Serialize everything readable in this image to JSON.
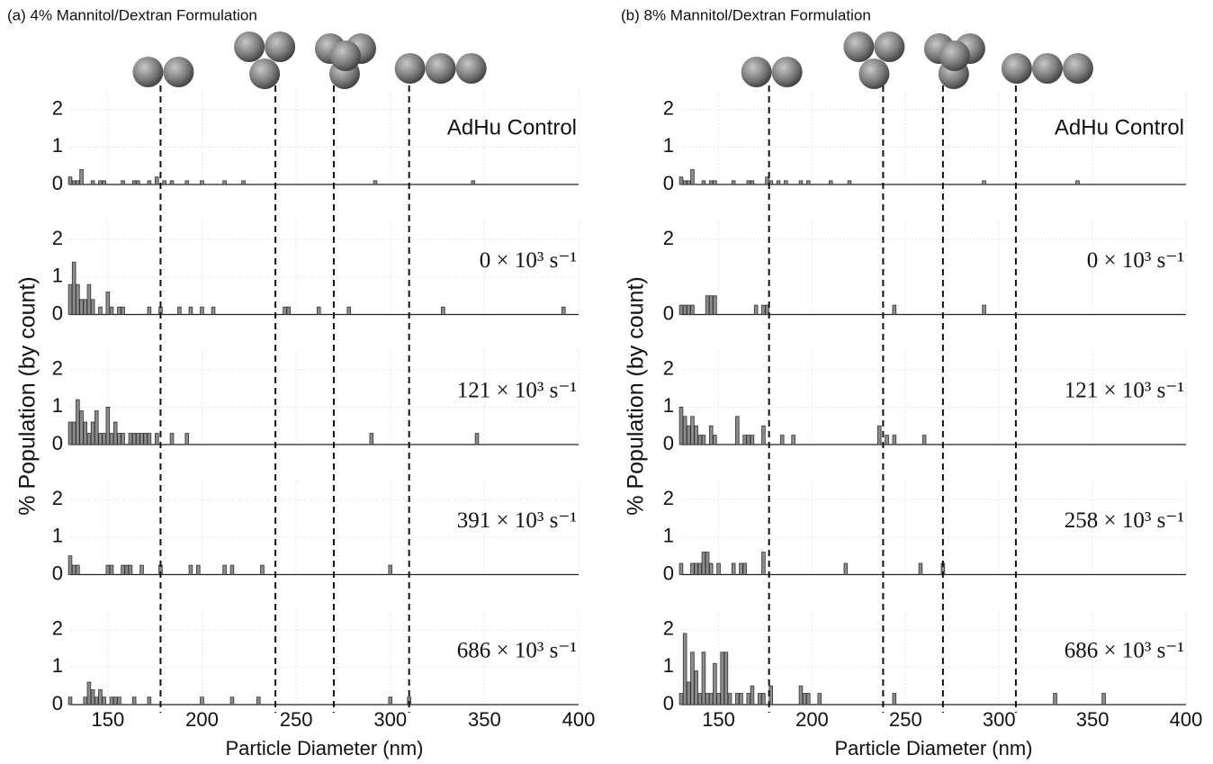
{
  "chart_data": [
    {
      "type": "bar",
      "title": "(a) 4% Mannitol/Dextran Formulation",
      "xlabel": "Particle Diameter (nm)",
      "ylabel": "% Population (by count)",
      "xlim": [
        130,
        400
      ],
      "xticks": [
        150,
        200,
        250,
        300,
        350,
        400
      ],
      "vlines": [
        178,
        239,
        270,
        310
      ],
      "grid": true,
      "color": "#8c8c8c",
      "subplots": [
        {
          "annotation": "AdHu Control",
          "ylim": [
            0,
            2.5
          ],
          "yticks": [
            0,
            1,
            2
          ],
          "x": [
            130,
            132,
            134,
            136,
            142,
            146,
            148,
            158,
            164,
            166,
            172,
            176,
            180,
            184,
            192,
            200,
            212,
            222,
            292,
            344
          ],
          "values": [
            0.2,
            0.1,
            0.1,
            0.4,
            0.1,
            0.1,
            0.1,
            0.1,
            0.1,
            0.1,
            0.1,
            0.2,
            0.1,
            0.1,
            0.1,
            0.1,
            0.1,
            0.1,
            0.1,
            0.1
          ]
        },
        {
          "annotation": "0 × 10³ s⁻¹",
          "ylim": [
            0,
            2.5
          ],
          "yticks": [
            0,
            1,
            2
          ],
          "x": [
            130,
            132,
            134,
            136,
            138,
            140,
            142,
            146,
            150,
            152,
            156,
            158,
            172,
            178,
            188,
            194,
            200,
            206,
            244,
            246,
            262,
            278,
            328,
            392
          ],
          "values": [
            0.8,
            1.4,
            0.8,
            0.4,
            0.4,
            0.8,
            0.4,
            0.2,
            0.6,
            0.2,
            0.2,
            0.2,
            0.2,
            0.2,
            0.2,
            0.2,
            0.2,
            0.2,
            0.2,
            0.2,
            0.2,
            0.2,
            0.2,
            0.2
          ]
        },
        {
          "annotation": "121 × 10³ s⁻¹",
          "ylim": [
            0,
            2.5
          ],
          "yticks": [
            0,
            1,
            2
          ],
          "x": [
            130,
            132,
            134,
            136,
            138,
            140,
            142,
            144,
            146,
            148,
            150,
            152,
            154,
            156,
            158,
            162,
            164,
            166,
            168,
            170,
            172,
            176,
            184,
            192,
            290,
            346
          ],
          "values": [
            0.6,
            0.6,
            1.2,
            0.9,
            0.6,
            0.3,
            0.6,
            0.9,
            0.3,
            0.3,
            1.0,
            0.3,
            0.6,
            0.3,
            0.3,
            0.3,
            0.3,
            0.3,
            0.3,
            0.3,
            0.3,
            0.3,
            0.3,
            0.3,
            0.3,
            0.3
          ]
        },
        {
          "annotation": "391 × 10³ s⁻¹",
          "ylim": [
            0,
            2.5
          ],
          "yticks": [
            0,
            1,
            2
          ],
          "x": [
            130,
            132,
            134,
            150,
            152,
            158,
            160,
            162,
            168,
            178,
            194,
            198,
            212,
            216,
            232,
            300
          ],
          "values": [
            0.5,
            0.25,
            0.25,
            0.25,
            0.25,
            0.25,
            0.25,
            0.25,
            0.25,
            0.25,
            0.25,
            0.25,
            0.25,
            0.25,
            0.25,
            0.25
          ]
        },
        {
          "annotation": "686 × 10³ s⁻¹",
          "ylim": [
            0,
            2.5
          ],
          "yticks": [
            0,
            1,
            2
          ],
          "x": [
            130,
            138,
            140,
            142,
            144,
            146,
            148,
            152,
            154,
            156,
            164,
            172,
            200,
            216,
            230,
            300,
            310
          ],
          "values": [
            0.2,
            0.2,
            0.6,
            0.4,
            0.2,
            0.4,
            0.2,
            0.2,
            0.2,
            0.2,
            0.2,
            0.2,
            0.2,
            0.2,
            0.2,
            0.2,
            0.2
          ]
        }
      ]
    },
    {
      "type": "bar",
      "title": "(b) 8% Mannitol/Dextran Formulation",
      "xlabel": "Particle Diameter (nm)",
      "ylabel": "% Population (by count)",
      "xlim": [
        130,
        400
      ],
      "xticks": [
        150,
        200,
        250,
        300,
        350,
        400
      ],
      "vlines": [
        177,
        238,
        270,
        309
      ],
      "grid": true,
      "color": "#8c8c8c",
      "subplots": [
        {
          "annotation": "AdHu Control",
          "ylim": [
            0,
            2.5
          ],
          "yticks": [
            0,
            1,
            2
          ],
          "x": [
            130,
            132,
            134,
            136,
            142,
            146,
            148,
            158,
            166,
            168,
            176,
            178,
            182,
            186,
            194,
            198,
            210,
            220,
            292,
            342
          ],
          "values": [
            0.2,
            0.1,
            0.1,
            0.4,
            0.1,
            0.1,
            0.1,
            0.1,
            0.1,
            0.1,
            0.2,
            0.1,
            0.1,
            0.1,
            0.1,
            0.1,
            0.1,
            0.1,
            0.1,
            0.1
          ]
        },
        {
          "annotation": "0 × 10³ s⁻¹",
          "ylim": [
            0,
            2.5
          ],
          "yticks": [
            0,
            2
          ],
          "x": [
            130,
            132,
            134,
            136,
            144,
            146,
            148,
            170,
            174,
            176,
            244,
            292
          ],
          "values": [
            0.25,
            0.25,
            0.25,
            0.25,
            0.5,
            0.5,
            0.5,
            0.25,
            0.25,
            0.25,
            0.25,
            0.25
          ]
        },
        {
          "annotation": "121 × 10³ s⁻¹",
          "ylim": [
            0,
            2.5
          ],
          "yticks": [
            0,
            1,
            2
          ],
          "x": [
            130,
            132,
            134,
            136,
            138,
            140,
            142,
            146,
            148,
            160,
            164,
            166,
            168,
            174,
            184,
            190,
            236,
            240,
            244,
            260
          ],
          "values": [
            1.0,
            0.75,
            0.5,
            0.75,
            0.5,
            0.25,
            0.25,
            0.5,
            0.25,
            0.75,
            0.25,
            0.25,
            0.25,
            0.5,
            0.25,
            0.25,
            0.5,
            0.25,
            0.25,
            0.25
          ]
        },
        {
          "annotation": "258 × 10³ s⁻¹",
          "ylim": [
            0,
            2.5
          ],
          "yticks": [
            0,
            1,
            2
          ],
          "x": [
            130,
            136,
            138,
            140,
            142,
            144,
            146,
            150,
            158,
            162,
            164,
            174,
            218,
            258,
            270
          ],
          "values": [
            0.3,
            0.3,
            0.3,
            0.3,
            0.6,
            0.6,
            0.3,
            0.3,
            0.3,
            0.3,
            0.3,
            0.6,
            0.3,
            0.3,
            0.3
          ]
        },
        {
          "annotation": "686 × 10³ s⁻¹",
          "ylim": [
            0,
            2.5
          ],
          "yticks": [
            0,
            1,
            2
          ],
          "x": [
            130,
            132,
            134,
            136,
            138,
            140,
            142,
            144,
            146,
            148,
            150,
            152,
            154,
            156,
            160,
            162,
            166,
            168,
            172,
            174,
            178,
            194,
            196,
            198,
            204,
            244,
            330,
            356
          ],
          "values": [
            0.3,
            1.9,
            0.6,
            1.4,
            0.9,
            0.3,
            1.4,
            0.3,
            0.3,
            1.1,
            0.3,
            1.4,
            1.4,
            0.3,
            0.3,
            0.3,
            0.3,
            0.5,
            0.3,
            0.3,
            0.5,
            0.5,
            0.3,
            0.3,
            0.3,
            0.3,
            0.3,
            0.3
          ]
        }
      ]
    }
  ]
}
